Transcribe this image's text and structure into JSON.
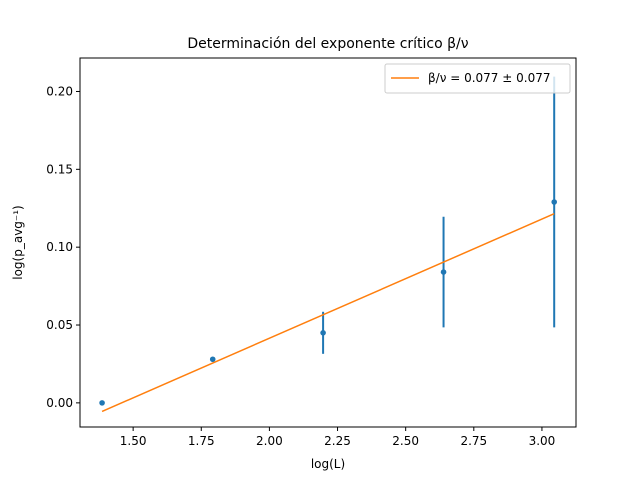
{
  "chart_data": {
    "type": "scatter",
    "title": "Determinación del exponente crítico β/ν",
    "xlabel": "log(L)",
    "ylabel": "log(p_avg⁻¹)",
    "xlim": [
      1.305,
      3.125
    ],
    "ylim": [
      -0.0155,
      0.2215
    ],
    "xticks": [
      1.5,
      1.75,
      2.0,
      2.25,
      2.5,
      2.75,
      3.0
    ],
    "xtick_labels": [
      "1.50",
      "1.75",
      "2.00",
      "2.25",
      "2.50",
      "2.75",
      "3.00"
    ],
    "yticks": [
      0.0,
      0.05,
      0.1,
      0.15,
      0.2
    ],
    "ytick_labels": [
      "0.00",
      "0.05",
      "0.10",
      "0.15",
      "0.20"
    ],
    "grid": false,
    "legend_position": "top-right",
    "series": [
      {
        "kind": "errorbar",
        "color": "#1f77b4",
        "points": [
          {
            "x": 1.386,
            "y": 0.0,
            "yerr_low": 0.0,
            "yerr_high": 0.0
          },
          {
            "x": 1.792,
            "y": 0.028,
            "yerr_low": 0.0,
            "yerr_high": 0.0
          },
          {
            "x": 2.197,
            "y": 0.045,
            "yerr_low": 0.0135,
            "yerr_high": 0.0135
          },
          {
            "x": 2.639,
            "y": 0.084,
            "yerr_low": 0.0355,
            "yerr_high": 0.0355
          },
          {
            "x": 3.045,
            "y": 0.129,
            "yerr_low": 0.0805,
            "yerr_high": 0.0805
          }
        ]
      },
      {
        "kind": "line",
        "name": "β/ν = 0.077 ± 0.077",
        "color": "#ff7f0e",
        "x": [
          1.386,
          3.045
        ],
        "y": [
          -0.0055,
          0.1215
        ]
      }
    ]
  }
}
